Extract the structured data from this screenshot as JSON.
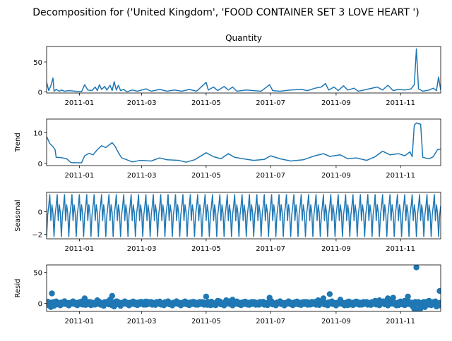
{
  "figure": {
    "title": "Decomposition for ('United Kingdom', 'FOOD CONTAINER SET 3 LOVE HEART ')"
  },
  "colors": {
    "line": "#1f77b4",
    "axes": "#000000",
    "background": "#ffffff"
  },
  "chart_data": [
    {
      "type": "line",
      "title": "Quantity",
      "ylabel": "",
      "x_range": [
        "2010-12-01",
        "2011-12-09"
      ],
      "x_ticks": [
        "2011-01",
        "2011-03",
        "2011-05",
        "2011-07",
        "2011-09",
        "2011-11"
      ],
      "ylim": [
        -2,
        76
      ],
      "y_ticks": [
        0,
        50
      ],
      "grid": false,
      "points": [
        [
          "2010-12-01",
          16
        ],
        [
          "2010-12-03",
          2
        ],
        [
          "2010-12-05",
          10
        ],
        [
          "2010-12-07",
          23
        ],
        [
          "2010-12-08",
          1
        ],
        [
          "2010-12-10",
          4
        ],
        [
          "2010-12-13",
          1
        ],
        [
          "2010-12-15",
          3
        ],
        [
          "2010-12-18",
          1
        ],
        [
          "2010-12-22",
          2
        ],
        [
          "2011-01-03",
          0
        ],
        [
          "2011-01-06",
          12
        ],
        [
          "2011-01-09",
          3
        ],
        [
          "2011-01-13",
          2
        ],
        [
          "2011-01-16",
          8
        ],
        [
          "2011-01-18",
          2
        ],
        [
          "2011-01-20",
          12
        ],
        [
          "2011-01-22",
          4
        ],
        [
          "2011-01-25",
          9
        ],
        [
          "2011-01-27",
          3
        ],
        [
          "2011-01-30",
          11
        ],
        [
          "2011-02-01",
          2
        ],
        [
          "2011-02-03",
          17
        ],
        [
          "2011-02-05",
          3
        ],
        [
          "2011-02-07",
          11
        ],
        [
          "2011-02-09",
          2
        ],
        [
          "2011-02-12",
          4
        ],
        [
          "2011-02-15",
          0
        ],
        [
          "2011-02-20",
          3
        ],
        [
          "2011-02-25",
          1
        ],
        [
          "2011-03-05",
          5
        ],
        [
          "2011-03-10",
          1
        ],
        [
          "2011-03-18",
          4
        ],
        [
          "2011-03-25",
          1
        ],
        [
          "2011-04-01",
          3
        ],
        [
          "2011-04-08",
          1
        ],
        [
          "2011-04-15",
          4
        ],
        [
          "2011-04-22",
          1
        ],
        [
          "2011-05-01",
          16
        ],
        [
          "2011-05-03",
          3
        ],
        [
          "2011-05-08",
          8
        ],
        [
          "2011-05-12",
          2
        ],
        [
          "2011-05-18",
          9
        ],
        [
          "2011-05-22",
          3
        ],
        [
          "2011-05-26",
          8
        ],
        [
          "2011-05-30",
          1
        ],
        [
          "2011-06-08",
          3
        ],
        [
          "2011-06-15",
          2
        ],
        [
          "2011-06-22",
          1
        ],
        [
          "2011-06-30",
          12
        ],
        [
          "2011-07-03",
          2
        ],
        [
          "2011-07-10",
          1
        ],
        [
          "2011-07-20",
          3
        ],
        [
          "2011-07-30",
          4
        ],
        [
          "2011-08-05",
          2
        ],
        [
          "2011-08-12",
          6
        ],
        [
          "2011-08-18",
          8
        ],
        [
          "2011-08-22",
          14
        ],
        [
          "2011-08-25",
          3
        ],
        [
          "2011-08-30",
          8
        ],
        [
          "2011-09-03",
          2
        ],
        [
          "2011-09-08",
          10
        ],
        [
          "2011-09-12",
          3
        ],
        [
          "2011-09-18",
          6
        ],
        [
          "2011-09-22",
          1
        ],
        [
          "2011-09-30",
          4
        ],
        [
          "2011-10-10",
          8
        ],
        [
          "2011-10-15",
          3
        ],
        [
          "2011-10-20",
          11
        ],
        [
          "2011-10-25",
          2
        ],
        [
          "2011-10-30",
          4
        ],
        [
          "2011-11-05",
          3
        ],
        [
          "2011-11-11",
          5
        ],
        [
          "2011-11-14",
          12
        ],
        [
          "2011-11-16",
          72
        ],
        [
          "2011-11-18",
          5
        ],
        [
          "2011-11-22",
          1
        ],
        [
          "2011-11-28",
          3
        ],
        [
          "2011-12-02",
          6
        ],
        [
          "2011-12-05",
          2
        ],
        [
          "2011-12-07",
          25
        ],
        [
          "2011-12-09",
          3
        ]
      ]
    },
    {
      "type": "line",
      "title": "",
      "ylabel": "Trend",
      "x_range": [
        "2010-12-01",
        "2011-12-09"
      ],
      "x_ticks": [
        "2011-01",
        "2011-03",
        "2011-05",
        "2011-07",
        "2011-09",
        "2011-11"
      ],
      "ylim": [
        -0.7,
        14.5
      ],
      "y_ticks": [
        0,
        10
      ],
      "grid": false,
      "points": [
        [
          "2010-12-01",
          8.8
        ],
        [
          "2010-12-04",
          6.5
        ],
        [
          "2010-12-07",
          5.5
        ],
        [
          "2010-12-09",
          4.5
        ],
        [
          "2010-12-10",
          2.0
        ],
        [
          "2010-12-15",
          1.9
        ],
        [
          "2010-12-20",
          1.5
        ],
        [
          "2010-12-24",
          0.3
        ],
        [
          "2011-01-03",
          0.2
        ],
        [
          "2011-01-06",
          2.5
        ],
        [
          "2011-01-10",
          3.3
        ],
        [
          "2011-01-14",
          2.8
        ],
        [
          "2011-01-18",
          4.5
        ],
        [
          "2011-01-22",
          5.8
        ],
        [
          "2011-01-26",
          5.2
        ],
        [
          "2011-02-01",
          6.8
        ],
        [
          "2011-02-04",
          5.5
        ],
        [
          "2011-02-07",
          3.5
        ],
        [
          "2011-02-10",
          1.8
        ],
        [
          "2011-02-15",
          1.2
        ],
        [
          "2011-02-20",
          0.5
        ],
        [
          "2011-02-28",
          1.0
        ],
        [
          "2011-03-10",
          0.8
        ],
        [
          "2011-03-18",
          1.8
        ],
        [
          "2011-03-25",
          1.2
        ],
        [
          "2011-04-05",
          1.0
        ],
        [
          "2011-04-12",
          0.4
        ],
        [
          "2011-04-20",
          1.2
        ],
        [
          "2011-05-01",
          3.5
        ],
        [
          "2011-05-08",
          2.2
        ],
        [
          "2011-05-15",
          1.5
        ],
        [
          "2011-05-22",
          3.2
        ],
        [
          "2011-05-28",
          2.0
        ],
        [
          "2011-06-05",
          1.5
        ],
        [
          "2011-06-15",
          1.0
        ],
        [
          "2011-06-25",
          1.3
        ],
        [
          "2011-07-01",
          2.5
        ],
        [
          "2011-07-10",
          1.5
        ],
        [
          "2011-07-20",
          0.8
        ],
        [
          "2011-08-01",
          1.2
        ],
        [
          "2011-08-12",
          2.5
        ],
        [
          "2011-08-20",
          3.2
        ],
        [
          "2011-08-26",
          2.3
        ],
        [
          "2011-09-05",
          2.8
        ],
        [
          "2011-09-12",
          1.5
        ],
        [
          "2011-09-20",
          1.8
        ],
        [
          "2011-09-30",
          1.0
        ],
        [
          "2011-10-08",
          2.2
        ],
        [
          "2011-10-15",
          4.0
        ],
        [
          "2011-10-22",
          2.8
        ],
        [
          "2011-10-30",
          3.2
        ],
        [
          "2011-11-05",
          2.5
        ],
        [
          "2011-11-10",
          3.8
        ],
        [
          "2011-11-12",
          2.2
        ],
        [
          "2011-11-14",
          12.5
        ],
        [
          "2011-11-16",
          13.2
        ],
        [
          "2011-11-20",
          12.8
        ],
        [
          "2011-11-22",
          2.0
        ],
        [
          "2011-11-28",
          1.5
        ],
        [
          "2011-12-02",
          2.2
        ],
        [
          "2011-12-06",
          4.5
        ],
        [
          "2011-12-09",
          4.7
        ]
      ]
    },
    {
      "type": "line",
      "title": "",
      "ylabel": "Seasonal",
      "x_range": [
        "2010-12-01",
        "2011-12-09"
      ],
      "x_ticks": [
        "2011-01",
        "2011-03",
        "2011-05",
        "2011-07",
        "2011-09",
        "2011-11"
      ],
      "ylim": [
        -2.4,
        1.7
      ],
      "y_ticks": [
        -2,
        0
      ],
      "grid": false,
      "period_days": 7,
      "weekly_pattern": [
        -2.2,
        -0.3,
        0.5,
        1.5,
        -0.8,
        0.6,
        -0.1
      ]
    },
    {
      "type": "scatter",
      "title": "",
      "ylabel": "Resid",
      "x_range": [
        "2010-12-01",
        "2011-12-09"
      ],
      "x_ticks": [
        "2011-01",
        "2011-03",
        "2011-05",
        "2011-07",
        "2011-09",
        "2011-11"
      ],
      "ylim": [
        -13,
        62
      ],
      "y_ticks": [
        0,
        50
      ],
      "grid": false,
      "baseline": 0,
      "points": [
        [
          "2010-12-01",
          -3
        ],
        [
          "2010-12-03",
          2
        ],
        [
          "2010-12-05",
          -6
        ],
        [
          "2010-12-06",
          16
        ],
        [
          "2010-12-08",
          -4
        ],
        [
          "2010-12-12",
          1
        ],
        [
          "2010-12-15",
          -2
        ],
        [
          "2010-12-20",
          0
        ],
        [
          "2011-01-04",
          -2
        ],
        [
          "2011-01-06",
          8
        ],
        [
          "2011-01-12",
          -3
        ],
        [
          "2011-01-18",
          5
        ],
        [
          "2011-01-24",
          -4
        ],
        [
          "2011-01-30",
          6
        ],
        [
          "2011-02-01",
          12
        ],
        [
          "2011-02-03",
          -5
        ],
        [
          "2011-02-06",
          3
        ],
        [
          "2011-02-09",
          -4
        ],
        [
          "2011-02-15",
          1
        ],
        [
          "2011-03-05",
          3
        ],
        [
          "2011-03-20",
          -2
        ],
        [
          "2011-04-10",
          2
        ],
        [
          "2011-04-25",
          -1
        ],
        [
          "2011-05-01",
          11
        ],
        [
          "2011-05-05",
          -3
        ],
        [
          "2011-05-12",
          4
        ],
        [
          "2011-05-20",
          5
        ],
        [
          "2011-05-26",
          6
        ],
        [
          "2011-06-10",
          -2
        ],
        [
          "2011-06-30",
          9
        ],
        [
          "2011-07-15",
          -1
        ],
        [
          "2011-08-05",
          2
        ],
        [
          "2011-08-15",
          5
        ],
        [
          "2011-08-20",
          8
        ],
        [
          "2011-08-26",
          15
        ],
        [
          "2011-09-05",
          6
        ],
        [
          "2011-09-12",
          -3
        ],
        [
          "2011-09-20",
          3
        ],
        [
          "2011-10-08",
          4
        ],
        [
          "2011-10-12",
          5
        ],
        [
          "2011-10-20",
          8
        ],
        [
          "2011-10-25",
          9
        ],
        [
          "2011-10-30",
          -3
        ],
        [
          "2011-11-05",
          4
        ],
        [
          "2011-11-08",
          11
        ],
        [
          "2011-11-12",
          -4
        ],
        [
          "2011-11-14",
          -9
        ],
        [
          "2011-11-16",
          58
        ],
        [
          "2011-11-18",
          -10
        ],
        [
          "2011-11-20",
          -8
        ],
        [
          "2011-11-24",
          -6
        ],
        [
          "2011-11-28",
          4
        ],
        [
          "2011-12-02",
          2
        ],
        [
          "2011-12-05",
          -5
        ],
        [
          "2011-12-08",
          20
        ]
      ]
    }
  ]
}
